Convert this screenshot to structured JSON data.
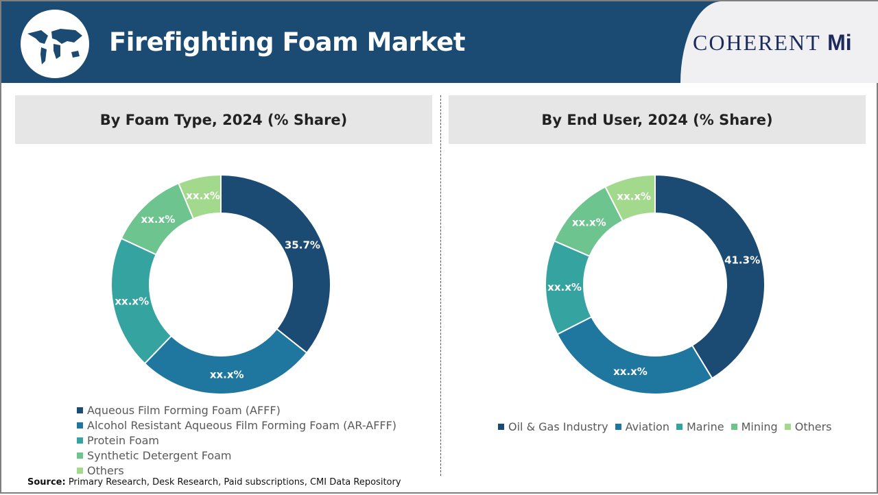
{
  "header": {
    "title": "Firefighting Foam Market",
    "logo_text": "COHERENT",
    "logo_suffix": "Mi"
  },
  "colors": {
    "header_bg": "#1b4a72",
    "series": [
      "#1b4a72",
      "#1f77a0",
      "#35a39f",
      "#6dc48f",
      "#a3d98c"
    ]
  },
  "chart_data": [
    {
      "type": "pie",
      "donut": true,
      "title": "By Foam Type, 2024 (% Share)",
      "categories": [
        "Aqueous Film Forming Foam (AFFF)",
        "Alcohol Resistant Aqueous Film Forming Foam (AR-AFFF)",
        "Protein Foam",
        "Synthetic Detergent Foam",
        "Others"
      ],
      "values": [
        35.7,
        26.5,
        19.7,
        11.8,
        6.3
      ],
      "data_labels": [
        "35.7%",
        "xx.x%",
        "xx.x%",
        "xx.x%",
        "xx.x%"
      ],
      "legend": "bottom"
    },
    {
      "type": "pie",
      "donut": true,
      "title": "By End User, 2024 (% Share)",
      "categories": [
        "Oil & Gas Industry",
        "Aviation",
        "Marine",
        "Mining",
        "Others"
      ],
      "values": [
        41.3,
        26.2,
        14.0,
        11.0,
        7.5
      ],
      "data_labels": [
        "41.3%",
        "xx.x%",
        "xx.x%",
        "xx.x%",
        "xx.x%"
      ],
      "legend": "bottom"
    }
  ],
  "source": {
    "label": "Source:",
    "text": " Primary Research, Desk Research, Paid subscriptions, CMI Data Repository"
  }
}
